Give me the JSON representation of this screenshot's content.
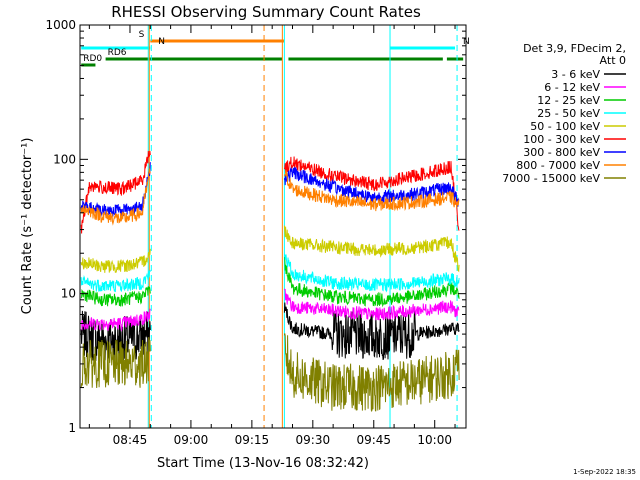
{
  "chart_data": {
    "type": "line",
    "title": "RHESSI Observing Summary Count Rates",
    "xlabel": "Start Time (13-Nov-16 08:32:42)",
    "ylabel": "Count Rate (s⁻¹ detector⁻¹)",
    "yscale": "log",
    "ylim": [
      1,
      1000
    ],
    "xlim": [
      "08:32:42",
      "10:07:42"
    ],
    "x_ticks": [
      "08:45",
      "09:00",
      "09:15",
      "09:30",
      "09:45",
      "10:00"
    ],
    "y_ticks": [
      "1",
      "10",
      "100",
      "1000"
    ],
    "legend_header": [
      "Det 3,9, FDecim 2,",
      "Att 0"
    ],
    "legend_position": "right",
    "timestamp": "1-Sep-2022 18:35",
    "data_gap": {
      "start": "08:50:00",
      "end": "09:23:00"
    },
    "series": [
      {
        "name": "3 - 6 keV",
        "color": "#000000",
        "segment1": {
          "x": [
            "08:33",
            "08:38",
            "08:43",
            "08:48",
            "08:50"
          ],
          "y": [
            5,
            4.5,
            4.5,
            4.8,
            5
          ]
        },
        "segment2": {
          "x": [
            "09:23",
            "09:25",
            "09:35",
            "09:45",
            "09:55",
            "10:04",
            "10:06"
          ],
          "y": [
            8,
            5.5,
            5,
            4.8,
            5,
            5.5,
            5.5
          ]
        }
      },
      {
        "name": "6 - 12 keV",
        "color": "#ff00ff",
        "segment1": {
          "x": [
            "08:33",
            "08:38",
            "08:43",
            "08:48",
            "08:50"
          ],
          "y": [
            6,
            6,
            6,
            6.5,
            7
          ]
        },
        "segment2": {
          "x": [
            "09:23",
            "09:25",
            "09:35",
            "09:45",
            "09:55",
            "10:04",
            "10:06"
          ],
          "y": [
            10,
            8,
            7.5,
            7,
            7.5,
            8,
            7
          ]
        }
      },
      {
        "name": "12 - 25 keV",
        "color": "#00cc00",
        "segment1": {
          "x": [
            "08:33",
            "08:38",
            "08:43",
            "08:48",
            "08:50"
          ],
          "y": [
            10,
            9,
            9,
            9.5,
            11
          ]
        },
        "segment2": {
          "x": [
            "09:23",
            "09:25",
            "09:35",
            "09:45",
            "09:55",
            "10:04",
            "10:06"
          ],
          "y": [
            17,
            11,
            9.5,
            9,
            9.5,
            11,
            10
          ]
        }
      },
      {
        "name": "25 - 50 keV",
        "color": "#00ffff",
        "segment1": {
          "x": [
            "08:33",
            "08:38",
            "08:43",
            "08:48",
            "08:50"
          ],
          "y": [
            12,
            11.5,
            11.5,
            12,
            14
          ]
        },
        "segment2": {
          "x": [
            "09:23",
            "09:25",
            "09:35",
            "09:45",
            "09:55",
            "10:04",
            "10:06"
          ],
          "y": [
            20,
            14,
            12,
            11.5,
            12,
            13,
            12
          ]
        }
      },
      {
        "name": "50 - 100 keV",
        "color": "#cccc00",
        "segment1": {
          "x": [
            "08:33",
            "08:38",
            "08:43",
            "08:48",
            "08:50"
          ],
          "y": [
            17,
            16,
            16,
            17,
            20
          ]
        },
        "segment2": {
          "x": [
            "09:23",
            "09:25",
            "09:35",
            "09:45",
            "09:55",
            "10:04",
            "10:06"
          ],
          "y": [
            30,
            24,
            22,
            21,
            22,
            24,
            15
          ]
        }
      },
      {
        "name": "100 - 300 keV",
        "color": "#ff0000",
        "segment1": {
          "x": [
            "08:33",
            "08:35",
            "08:38",
            "08:43",
            "08:48",
            "08:50"
          ],
          "y": [
            30,
            64,
            62,
            60,
            70,
            120
          ]
        },
        "segment2": {
          "x": [
            "09:23",
            "09:25",
            "09:35",
            "09:45",
            "09:55",
            "10:04",
            "10:06"
          ],
          "y": [
            85,
            95,
            75,
            65,
            75,
            88,
            30
          ]
        }
      },
      {
        "name": "300 - 800 keV",
        "color": "#0000ff",
        "segment1": {
          "x": [
            "08:33",
            "08:38",
            "08:43",
            "08:48",
            "08:50"
          ],
          "y": [
            44,
            42,
            42,
            44,
            90
          ]
        },
        "segment2": {
          "x": [
            "09:23",
            "09:25",
            "09:35",
            "09:45",
            "09:55",
            "10:04",
            "10:06"
          ],
          "y": [
            70,
            80,
            62,
            52,
            55,
            62,
            46
          ]
        }
      },
      {
        "name": "800 - 7000 keV",
        "color": "#ff8000",
        "segment1": {
          "x": [
            "08:33",
            "08:38",
            "08:43",
            "08:48",
            "08:50"
          ],
          "y": [
            44,
            38,
            36,
            40,
            85
          ]
        },
        "segment2": {
          "x": [
            "09:23",
            "09:25",
            "09:35",
            "09:45",
            "09:55",
            "10:04",
            "10:06"
          ],
          "y": [
            80,
            60,
            50,
            46,
            48,
            52,
            44
          ]
        }
      },
      {
        "name": "7000 - 15000 keV",
        "color": "#808000",
        "segment1": {
          "x": [
            "08:33",
            "08:38",
            "08:43",
            "08:48",
            "08:50"
          ],
          "y": [
            3,
            3,
            3,
            3,
            3.2
          ]
        },
        "segment2": {
          "x": [
            "09:23",
            "09:25",
            "09:35",
            "09:45",
            "09:55",
            "10:04",
            "10:06"
          ],
          "y": [
            4,
            2.5,
            2,
            2,
            2.2,
            2.5,
            3
          ]
        }
      }
    ],
    "state_bars": [
      {
        "label": "S",
        "color": "#ff8000",
        "start": "08:50:00",
        "end": "09:23:00"
      },
      {
        "label": "N",
        "color": "#00ffff",
        "start": "08:33:00",
        "end": "08:50:00"
      },
      {
        "label": "N",
        "color": "#00ffff",
        "start": "09:49:00",
        "end": "10:05:00"
      },
      {
        "label": "RD0",
        "color": "#008000",
        "start": "08:33:00",
        "end": "08:36:30"
      },
      {
        "label": "RD6",
        "color": "#008000",
        "start": "08:39:00",
        "end": "09:22:30"
      },
      {
        "label": "",
        "color": "#008000",
        "start": "09:24:00",
        "end": "10:02:00"
      },
      {
        "label": "",
        "color": "#008000",
        "start": "10:03:00",
        "end": "10:07:00"
      }
    ],
    "vertical_lines": [
      {
        "time": "08:49:30",
        "color": "#00ffff",
        "style": "solid"
      },
      {
        "time": "08:49:45",
        "color": "#ff8000",
        "style": "solid"
      },
      {
        "time": "08:50:15",
        "color": "#00ffff",
        "style": "dashed"
      },
      {
        "time": "09:18:00",
        "color": "#ff8000",
        "style": "dashed"
      },
      {
        "time": "09:22:30",
        "color": "#ff8000",
        "style": "solid"
      },
      {
        "time": "09:23:00",
        "color": "#00ffff",
        "style": "solid"
      },
      {
        "time": "09:49:00",
        "color": "#00ffff",
        "style": "solid"
      },
      {
        "time": "10:05:30",
        "color": "#00ffff",
        "style": "dashed"
      }
    ]
  }
}
